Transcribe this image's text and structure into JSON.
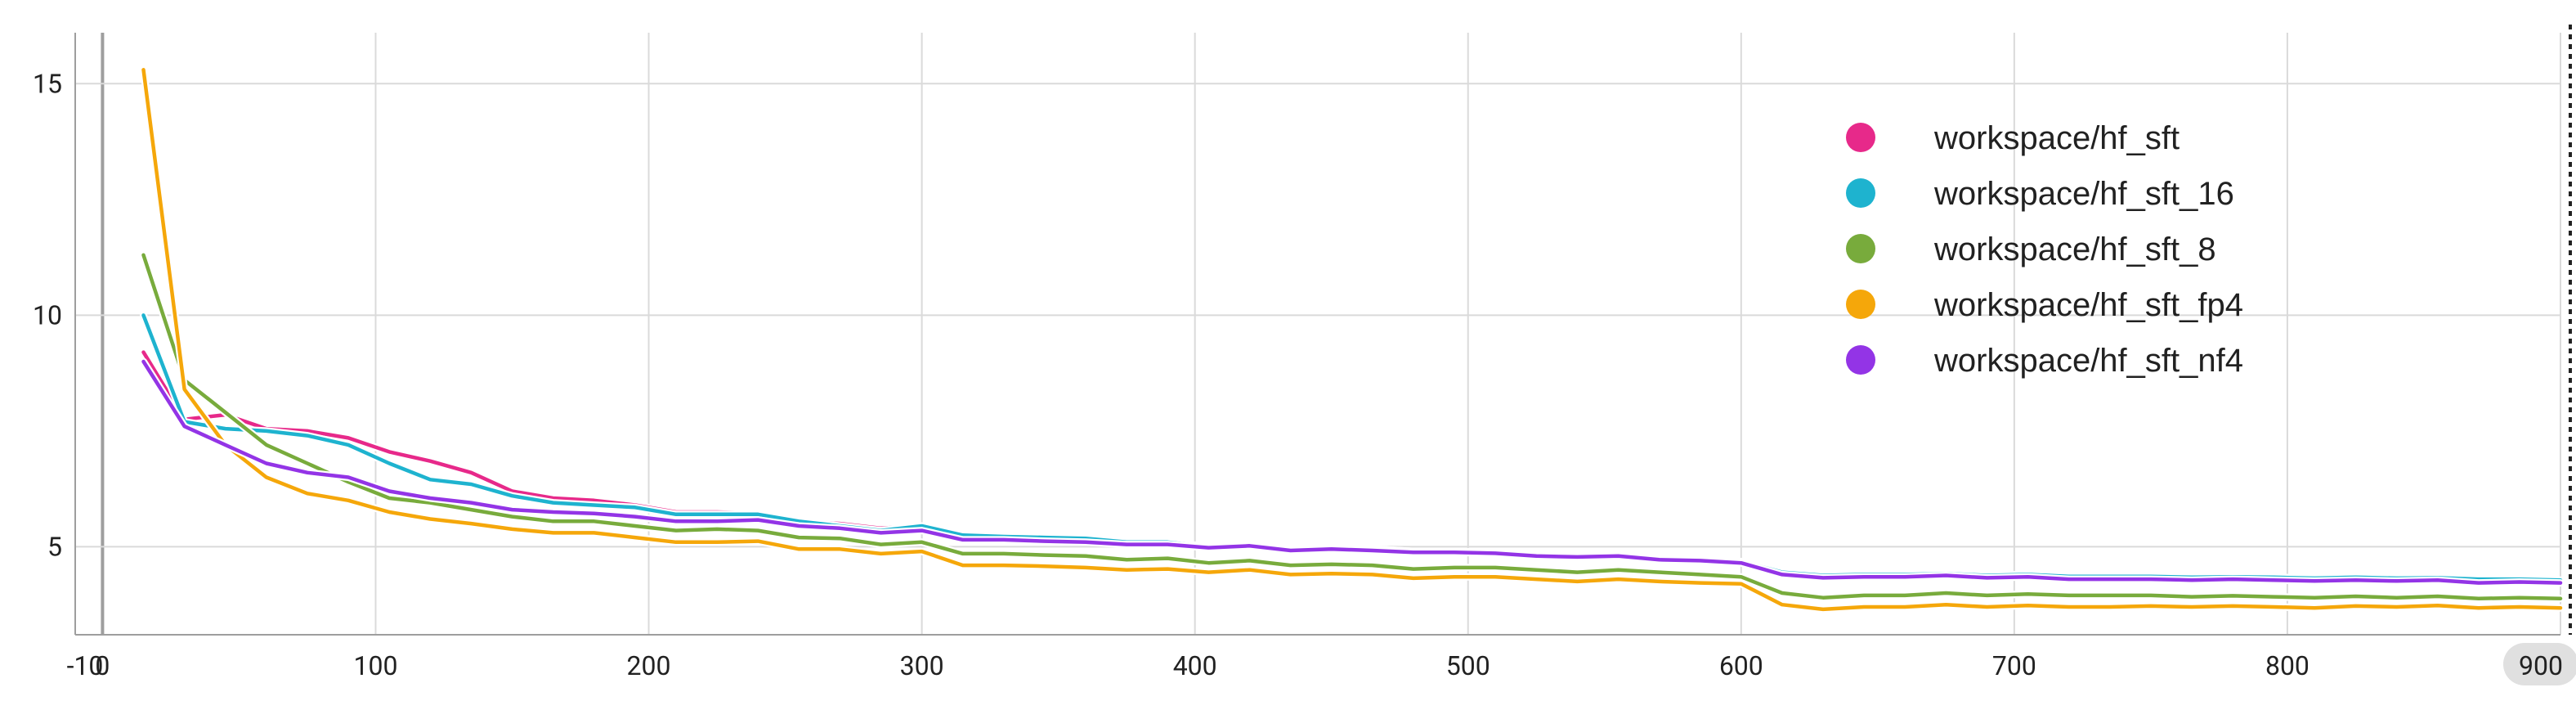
{
  "chart_data": {
    "type": "line",
    "xlim": [
      -10,
      900
    ],
    "ylim": [
      3.1,
      16.1
    ],
    "x_ticks": [
      {
        "value": -10,
        "label": "-10"
      },
      {
        "value": 0,
        "label": "0"
      },
      {
        "value": 100,
        "label": "100"
      },
      {
        "value": 200,
        "label": "200"
      },
      {
        "value": 300,
        "label": "300"
      },
      {
        "value": 400,
        "label": "400"
      },
      {
        "value": 500,
        "label": "500"
      },
      {
        "value": 600,
        "label": "600"
      },
      {
        "value": 700,
        "label": "700"
      },
      {
        "value": 800,
        "label": "800"
      },
      {
        "value": 900,
        "label": "900"
      }
    ],
    "y_ticks": [
      {
        "value": 5,
        "label": "5"
      },
      {
        "value": 10,
        "label": "10"
      },
      {
        "value": 15,
        "label": "15"
      }
    ],
    "grid": true,
    "legend_position": "top-right",
    "cursor_x": 900,
    "series": [
      {
        "name": "workspace/hf_sft",
        "color": "#e7298a",
        "x": [
          15,
          30,
          45,
          60,
          75,
          90,
          105,
          120,
          135,
          150,
          165,
          180,
          195,
          210,
          225,
          240,
          255,
          270,
          285,
          300,
          315,
          330,
          345,
          360,
          375,
          390,
          405,
          420,
          435,
          450,
          465,
          480,
          495,
          510,
          525,
          540,
          555,
          570,
          585,
          600,
          615,
          630,
          645,
          660,
          675,
          690,
          705,
          720,
          735,
          750,
          765,
          780,
          795,
          810,
          825,
          840,
          855,
          870,
          885,
          900
        ],
        "y": [
          9.2,
          7.75,
          7.85,
          7.55,
          7.5,
          7.35,
          7.05,
          6.85,
          6.6,
          6.2,
          6.05,
          6.0,
          5.9,
          5.75,
          5.75,
          5.72,
          5.55,
          5.5,
          5.4,
          5.45,
          5.25,
          5.22,
          5.2,
          5.18,
          5.1,
          5.1,
          5.0,
          5.05,
          4.95,
          4.98,
          4.95,
          4.9,
          4.9,
          4.88,
          4.82,
          4.8,
          4.82,
          4.75,
          4.72,
          4.68,
          4.45,
          4.38,
          4.4,
          4.4,
          4.42,
          4.38,
          4.4,
          4.36,
          4.36,
          4.36,
          4.34,
          4.35,
          4.34,
          4.32,
          4.34,
          4.32,
          4.33,
          4.3,
          4.3,
          4.28
        ]
      },
      {
        "name": "workspace/hf_sft_16",
        "color": "#1eb3cf",
        "x": [
          15,
          30,
          45,
          60,
          75,
          90,
          105,
          120,
          135,
          150,
          165,
          180,
          195,
          210,
          225,
          240,
          255,
          270,
          285,
          300,
          315,
          330,
          345,
          360,
          375,
          390,
          405,
          420,
          435,
          450,
          465,
          480,
          495,
          510,
          525,
          540,
          555,
          570,
          585,
          600,
          615,
          630,
          645,
          660,
          675,
          690,
          705,
          720,
          735,
          750,
          765,
          780,
          795,
          810,
          825,
          840,
          855,
          870,
          885,
          900
        ],
        "y": [
          10.0,
          7.7,
          7.55,
          7.5,
          7.4,
          7.2,
          6.8,
          6.45,
          6.35,
          6.1,
          5.95,
          5.9,
          5.85,
          5.7,
          5.7,
          5.7,
          5.55,
          5.45,
          5.35,
          5.45,
          5.25,
          5.22,
          5.2,
          5.18,
          5.1,
          5.1,
          5.0,
          5.05,
          4.95,
          4.98,
          4.95,
          4.9,
          4.9,
          4.88,
          4.82,
          4.8,
          4.82,
          4.75,
          4.72,
          4.68,
          4.45,
          4.38,
          4.4,
          4.4,
          4.42,
          4.38,
          4.4,
          4.36,
          4.36,
          4.36,
          4.34,
          4.35,
          4.34,
          4.32,
          4.34,
          4.32,
          4.33,
          4.3,
          4.3,
          4.28
        ]
      },
      {
        "name": "workspace/hf_sft_8",
        "color": "#78ab3c",
        "x": [
          15,
          30,
          45,
          60,
          75,
          90,
          105,
          120,
          135,
          150,
          165,
          180,
          195,
          210,
          225,
          240,
          255,
          270,
          285,
          300,
          315,
          330,
          345,
          360,
          375,
          390,
          405,
          420,
          435,
          450,
          465,
          480,
          495,
          510,
          525,
          540,
          555,
          570,
          585,
          600,
          615,
          630,
          645,
          660,
          675,
          690,
          705,
          720,
          735,
          750,
          765,
          780,
          795,
          810,
          825,
          840,
          855,
          870,
          885,
          900
        ],
        "y": [
          11.3,
          8.6,
          7.9,
          7.2,
          6.8,
          6.4,
          6.05,
          5.95,
          5.8,
          5.65,
          5.55,
          5.55,
          5.45,
          5.35,
          5.38,
          5.35,
          5.2,
          5.18,
          5.05,
          5.1,
          4.85,
          4.85,
          4.82,
          4.8,
          4.72,
          4.75,
          4.65,
          4.7,
          4.6,
          4.62,
          4.6,
          4.52,
          4.55,
          4.55,
          4.5,
          4.45,
          4.5,
          4.45,
          4.4,
          4.35,
          4.0,
          3.9,
          3.95,
          3.95,
          4.0,
          3.95,
          3.98,
          3.95,
          3.95,
          3.95,
          3.92,
          3.94,
          3.92,
          3.9,
          3.93,
          3.9,
          3.93,
          3.88,
          3.9,
          3.88
        ]
      },
      {
        "name": "workspace/hf_sft_fp4",
        "color": "#f5a70a",
        "x": [
          15,
          30,
          45,
          60,
          75,
          90,
          105,
          120,
          135,
          150,
          165,
          180,
          195,
          210,
          225,
          240,
          255,
          270,
          285,
          300,
          315,
          330,
          345,
          360,
          375,
          390,
          405,
          420,
          435,
          450,
          465,
          480,
          495,
          510,
          525,
          540,
          555,
          570,
          585,
          600,
          615,
          630,
          645,
          660,
          675,
          690,
          705,
          720,
          735,
          750,
          765,
          780,
          795,
          810,
          825,
          840,
          855,
          870,
          885,
          900
        ],
        "y": [
          15.3,
          8.4,
          7.2,
          6.5,
          6.15,
          6.0,
          5.75,
          5.6,
          5.5,
          5.38,
          5.3,
          5.3,
          5.2,
          5.1,
          5.1,
          5.12,
          4.95,
          4.95,
          4.85,
          4.9,
          4.6,
          4.6,
          4.58,
          4.55,
          4.5,
          4.52,
          4.45,
          4.5,
          4.4,
          4.42,
          4.4,
          4.32,
          4.35,
          4.35,
          4.3,
          4.25,
          4.3,
          4.25,
          4.22,
          4.2,
          3.75,
          3.65,
          3.7,
          3.7,
          3.75,
          3.7,
          3.73,
          3.7,
          3.7,
          3.72,
          3.7,
          3.72,
          3.7,
          3.68,
          3.72,
          3.7,
          3.73,
          3.68,
          3.7,
          3.68
        ]
      },
      {
        "name": "workspace/hf_sft_nf4",
        "color": "#9334e6",
        "x": [
          15,
          30,
          45,
          60,
          75,
          90,
          105,
          120,
          135,
          150,
          165,
          180,
          195,
          210,
          225,
          240,
          255,
          270,
          285,
          300,
          315,
          330,
          345,
          360,
          375,
          390,
          405,
          420,
          435,
          450,
          465,
          480,
          495,
          510,
          525,
          540,
          555,
          570,
          585,
          600,
          615,
          630,
          645,
          660,
          675,
          690,
          705,
          720,
          735,
          750,
          765,
          780,
          795,
          810,
          825,
          840,
          855,
          870,
          885,
          900
        ],
        "y": [
          9.0,
          7.6,
          7.2,
          6.8,
          6.6,
          6.5,
          6.2,
          6.05,
          5.95,
          5.8,
          5.75,
          5.72,
          5.65,
          5.55,
          5.55,
          5.58,
          5.45,
          5.4,
          5.3,
          5.35,
          5.15,
          5.15,
          5.12,
          5.1,
          5.05,
          5.05,
          4.98,
          5.02,
          4.92,
          4.95,
          4.92,
          4.88,
          4.88,
          4.86,
          4.8,
          4.78,
          4.8,
          4.72,
          4.7,
          4.65,
          4.4,
          4.33,
          4.35,
          4.35,
          4.38,
          4.33,
          4.35,
          4.3,
          4.3,
          4.3,
          4.28,
          4.3,
          4.28,
          4.26,
          4.28,
          4.26,
          4.28,
          4.22,
          4.24,
          4.22
        ]
      }
    ]
  }
}
